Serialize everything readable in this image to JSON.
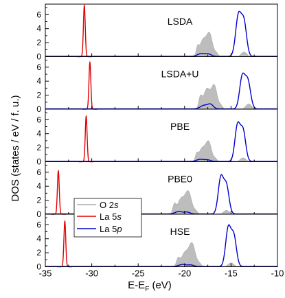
{
  "chart_data": {
    "type": "area",
    "xlabel_main": "E-E",
    "xlabel_sub": "F",
    "xlabel_unit": " (eV)",
    "ylabel": "DOS (states / eV / f. u.)",
    "xlim": [
      -35,
      -10
    ],
    "xticks": [
      "-35",
      "-30",
      "-25",
      "-20",
      "-15",
      "-10"
    ],
    "ylim": [
      0,
      7.5
    ],
    "yticks": [
      "0",
      "2",
      "4",
      "6"
    ],
    "legend": {
      "placement": "middle-left",
      "entries": [
        {
          "pre": "O  2",
          "ital": "s",
          "color": "#a8a8a8"
        },
        {
          "pre": "La 5",
          "ital": "s",
          "color": "#e00000"
        },
        {
          "pre": "La 5",
          "ital": "p",
          "color": "#0000cc"
        }
      ]
    },
    "colors": {
      "O2s": "#bdbdbd",
      "La5s": "#e00000",
      "La5p": "#0000cc"
    },
    "panels": [
      {
        "label": "LSDA",
        "La5s": {
          "center": -30.8,
          "height": 7.3,
          "width": 0.1
        },
        "O2s": [
          {
            "c": -18.6,
            "h": 1.1,
            "w": 0.15
          },
          {
            "c": -18.0,
            "h": 2.4,
            "w": 0.35
          },
          {
            "c": -17.3,
            "h": 3.1,
            "w": 0.3
          },
          {
            "c": -16.6,
            "h": 0.5,
            "w": 0.2
          },
          {
            "c": -13.6,
            "h": 0.65,
            "w": 0.3
          }
        ],
        "La5p": [
          {
            "c": -18.2,
            "h": 0.4,
            "w": 0.4
          },
          {
            "c": -17.4,
            "h": 0.3,
            "w": 0.3
          },
          {
            "c": -14.2,
            "h": 5.8,
            "w": 0.3
          },
          {
            "c": -13.6,
            "h": 4.7,
            "w": 0.28
          }
        ]
      },
      {
        "label": "LSDA+U",
        "La5s": {
          "center": -30.2,
          "height": 6.7,
          "width": 0.1
        },
        "O2s": [
          {
            "c": -18.3,
            "h": 1.6,
            "w": 0.18
          },
          {
            "c": -17.6,
            "h": 2.9,
            "w": 0.35
          },
          {
            "c": -16.8,
            "h": 3.3,
            "w": 0.3
          },
          {
            "c": -16.1,
            "h": 0.5,
            "w": 0.2
          },
          {
            "c": -13.1,
            "h": 0.75,
            "w": 0.3
          }
        ],
        "La5p": [
          {
            "c": -17.9,
            "h": 0.5,
            "w": 0.4
          },
          {
            "c": -17.2,
            "h": 0.6,
            "w": 0.3
          },
          {
            "c": -13.8,
            "h": 4.4,
            "w": 0.28
          },
          {
            "c": -13.2,
            "h": 4.0,
            "w": 0.3
          }
        ]
      },
      {
        "label": "PBE",
        "La5s": {
          "center": -30.6,
          "height": 6.5,
          "width": 0.1
        },
        "O2s": [
          {
            "c": -18.7,
            "h": 0.9,
            "w": 0.15
          },
          {
            "c": -18.1,
            "h": 1.9,
            "w": 0.35
          },
          {
            "c": -17.4,
            "h": 2.7,
            "w": 0.3
          },
          {
            "c": -16.7,
            "h": 0.4,
            "w": 0.2
          },
          {
            "c": -13.7,
            "h": 0.55,
            "w": 0.3
          }
        ],
        "La5p": [
          {
            "c": -18.3,
            "h": 0.3,
            "w": 0.4
          },
          {
            "c": -17.5,
            "h": 0.2,
            "w": 0.3
          },
          {
            "c": -14.3,
            "h": 5.1,
            "w": 0.28
          },
          {
            "c": -13.7,
            "h": 4.3,
            "w": 0.28
          }
        ]
      },
      {
        "label": "PBE0",
        "La5s": {
          "center": -33.6,
          "height": 6.2,
          "width": 0.1
        },
        "O2s": [
          {
            "c": -21.1,
            "h": 1.3,
            "w": 0.18
          },
          {
            "c": -20.4,
            "h": 2.1,
            "w": 0.35
          },
          {
            "c": -19.6,
            "h": 3.2,
            "w": 0.35
          },
          {
            "c": -18.8,
            "h": 0.4,
            "w": 0.2
          },
          {
            "c": -15.5,
            "h": 0.55,
            "w": 0.3
          }
        ],
        "La5p": [
          {
            "c": -20.6,
            "h": 0.35,
            "w": 0.4
          },
          {
            "c": -19.7,
            "h": 0.25,
            "w": 0.3
          },
          {
            "c": -16.1,
            "h": 5.1,
            "w": 0.28
          },
          {
            "c": -15.5,
            "h": 4.0,
            "w": 0.28
          }
        ]
      },
      {
        "label": "HSE",
        "La5s": {
          "center": -32.9,
          "height": 6.5,
          "width": 0.1
        },
        "O2s": [
          {
            "c": -20.7,
            "h": 1.1,
            "w": 0.18
          },
          {
            "c": -20.0,
            "h": 1.9,
            "w": 0.35
          },
          {
            "c": -19.2,
            "h": 3.3,
            "w": 0.35
          },
          {
            "c": -18.4,
            "h": 0.4,
            "w": 0.2
          },
          {
            "c": -15.0,
            "h": 0.55,
            "w": 0.3
          }
        ],
        "La5p": [
          {
            "c": -20.2,
            "h": 0.3,
            "w": 0.4
          },
          {
            "c": -19.3,
            "h": 0.2,
            "w": 0.3
          },
          {
            "c": -15.3,
            "h": 5.4,
            "w": 0.28
          },
          {
            "c": -14.7,
            "h": 4.3,
            "w": 0.28
          }
        ]
      }
    ]
  }
}
